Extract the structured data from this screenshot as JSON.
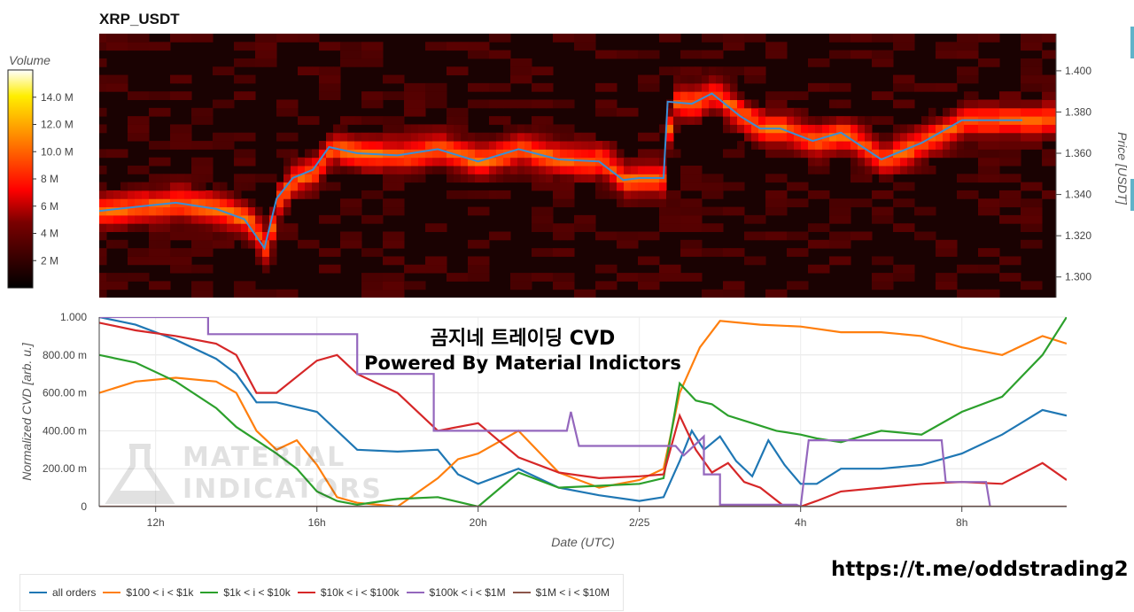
{
  "header": {
    "title": "XRP_USDT"
  },
  "overlay": {
    "title": "곰지네 트레이딩 CVD",
    "subtitle": "Powered By Material Indictors"
  },
  "watermark": {
    "line1": "MATERIAL",
    "line2": "INDICATORS"
  },
  "link": {
    "text": "https://t.me/oddstrading2"
  },
  "colors": {
    "all_orders": "#1f77b4",
    "b100_1k": "#ff7f0e",
    "b1k_10k": "#2ca02c",
    "b10k_100k": "#d62728",
    "b100k_1m": "#9467bd",
    "b1m_10m": "#8c564b",
    "price_line": "#3a8fd6"
  },
  "chart_data": [
    {
      "type": "heatmap",
      "title": "XRP_USDT",
      "ylabel": "Price [USDT]",
      "y_ticks": [
        "1.300",
        "1.320",
        "1.340",
        "1.360",
        "1.380",
        "1.400"
      ],
      "ylim": [
        1.29,
        1.418
      ],
      "colorbar": {
        "label": "Volume",
        "ticks": [
          "2 M",
          "4 M",
          "6 M",
          "8 M",
          "10.0 M",
          "12.0 M",
          "14.0 M"
        ],
        "range": [
          0,
          16
        ]
      },
      "price_line": {
        "x_hours": [
          10.6,
          11.5,
          12.5,
          13.5,
          14.2,
          14.7,
          15.0,
          15.4,
          15.9,
          16.3,
          17.0,
          18.0,
          19.0,
          20.0,
          21.0,
          22.0,
          23.0,
          23.6,
          24.0,
          24.6,
          24.7,
          25.3,
          25.8,
          26.5,
          27.0,
          27.5,
          28.3,
          29.0,
          30.0,
          31.0,
          32.0,
          33.5
        ],
        "values": [
          1.332,
          1.334,
          1.336,
          1.333,
          1.328,
          1.314,
          1.338,
          1.348,
          1.352,
          1.363,
          1.36,
          1.359,
          1.362,
          1.356,
          1.362,
          1.357,
          1.356,
          1.347,
          1.348,
          1.348,
          1.385,
          1.384,
          1.389,
          1.378,
          1.372,
          1.372,
          1.366,
          1.37,
          1.357,
          1.365,
          1.376,
          1.376
        ]
      }
    },
    {
      "type": "line",
      "xlabel": "Date (UTC)",
      "ylabel": "Normalized CVD [arb. u.]",
      "x_ticks": [
        "12h",
        "16h",
        "20h",
        "2/25",
        "4h",
        "8h"
      ],
      "y_ticks": [
        "0",
        "200.00 m",
        "400.00 m",
        "600.00 m",
        "800.00 m",
        "1.000"
      ],
      "xlim_hours": [
        10.6,
        34.6
      ],
      "ylim": [
        0,
        1
      ],
      "legend_position": "bottom",
      "series": [
        {
          "name": "all orders",
          "x": [
            10.6,
            11.5,
            12.5,
            13.5,
            14.0,
            14.5,
            15.0,
            16.0,
            17.0,
            18.0,
            19.0,
            19.5,
            20.0,
            21.0,
            22.0,
            23.0,
            24.0,
            24.6,
            25.0,
            25.3,
            25.6,
            26.0,
            26.4,
            26.8,
            27.2,
            27.6,
            28.0,
            28.4,
            29.0,
            30.0,
            31.0,
            32.0,
            33.0,
            34.0,
            34.6
          ],
          "y": [
            1.0,
            0.96,
            0.88,
            0.78,
            0.7,
            0.55,
            0.55,
            0.5,
            0.3,
            0.29,
            0.3,
            0.17,
            0.12,
            0.2,
            0.1,
            0.06,
            0.03,
            0.05,
            0.24,
            0.4,
            0.3,
            0.37,
            0.24,
            0.16,
            0.35,
            0.22,
            0.12,
            0.12,
            0.2,
            0.2,
            0.22,
            0.28,
            0.38,
            0.51,
            0.48
          ]
        },
        {
          "name": "$100 < i < $1k",
          "x": [
            10.6,
            11.5,
            12.5,
            13.5,
            14.0,
            14.5,
            15.0,
            15.5,
            16.0,
            16.5,
            17.0,
            18.0,
            19.0,
            19.5,
            20.0,
            21.0,
            22.0,
            23.0,
            24.0,
            24.6,
            25.0,
            25.5,
            26.0,
            27.0,
            28.0,
            29.0,
            30.0,
            31.0,
            32.0,
            33.0,
            34.0,
            34.6
          ],
          "y": [
            0.6,
            0.66,
            0.68,
            0.66,
            0.6,
            0.4,
            0.3,
            0.35,
            0.22,
            0.05,
            0.02,
            0.0,
            0.15,
            0.25,
            0.28,
            0.4,
            0.18,
            0.1,
            0.14,
            0.2,
            0.6,
            0.84,
            0.98,
            0.96,
            0.95,
            0.92,
            0.92,
            0.9,
            0.84,
            0.8,
            0.9,
            0.86
          ]
        },
        {
          "name": "$1k < i < $10k",
          "x": [
            10.6,
            11.5,
            12.5,
            13.5,
            14.0,
            15.0,
            15.5,
            16.0,
            16.5,
            17.0,
            18.0,
            19.0,
            20.0,
            21.0,
            22.0,
            23.0,
            24.0,
            24.6,
            25.0,
            25.4,
            25.8,
            26.2,
            26.8,
            27.4,
            28.0,
            28.4,
            29.0,
            30.0,
            31.0,
            32.0,
            33.0,
            34.0,
            34.6
          ],
          "y": [
            0.8,
            0.76,
            0.66,
            0.52,
            0.42,
            0.28,
            0.2,
            0.08,
            0.03,
            0.01,
            0.04,
            0.05,
            0.0,
            0.18,
            0.1,
            0.11,
            0.12,
            0.15,
            0.65,
            0.56,
            0.54,
            0.48,
            0.44,
            0.4,
            0.38,
            0.36,
            0.34,
            0.4,
            0.38,
            0.5,
            0.58,
            0.8,
            1.0
          ]
        },
        {
          "name": "$10k < i < $100k",
          "x": [
            10.6,
            11.5,
            12.5,
            13.5,
            14.0,
            14.5,
            15.0,
            16.0,
            16.5,
            17.0,
            18.0,
            19.0,
            20.0,
            21.0,
            22.0,
            23.0,
            24.0,
            24.6,
            25.0,
            25.4,
            25.8,
            26.2,
            26.6,
            27.0,
            27.6,
            28.0,
            28.4,
            29.0,
            30.0,
            31.0,
            32.0,
            33.0,
            34.0,
            34.6
          ],
          "y": [
            0.97,
            0.93,
            0.9,
            0.86,
            0.8,
            0.6,
            0.6,
            0.77,
            0.8,
            0.7,
            0.6,
            0.4,
            0.44,
            0.26,
            0.18,
            0.15,
            0.16,
            0.17,
            0.48,
            0.3,
            0.18,
            0.23,
            0.13,
            0.1,
            0.0,
            0.0,
            0.03,
            0.08,
            0.1,
            0.12,
            0.13,
            0.12,
            0.23,
            0.14
          ]
        },
        {
          "name": "$100k < i < $1M",
          "x": [
            10.6,
            13.3,
            13.3,
            17.0,
            17.0,
            18.9,
            18.9,
            20.0,
            22.2,
            22.3,
            22.5,
            23.0,
            24.9,
            25.1,
            25.6,
            25.6,
            26.0,
            26.0,
            27.9,
            28.0,
            28.2,
            28.3,
            31.5,
            31.6,
            32.6,
            32.7
          ],
          "y": [
            1.0,
            1.0,
            0.91,
            0.91,
            0.7,
            0.7,
            0.4,
            0.4,
            0.4,
            0.5,
            0.32,
            0.32,
            0.32,
            0.27,
            0.37,
            0.17,
            0.17,
            0.01,
            0.01,
            0.0,
            0.35,
            0.35,
            0.35,
            0.13,
            0.13,
            0.0
          ]
        },
        {
          "name": "$1M < i < $10M",
          "x": [
            10.6,
            34.6
          ],
          "y": [
            0,
            0
          ]
        }
      ]
    }
  ]
}
